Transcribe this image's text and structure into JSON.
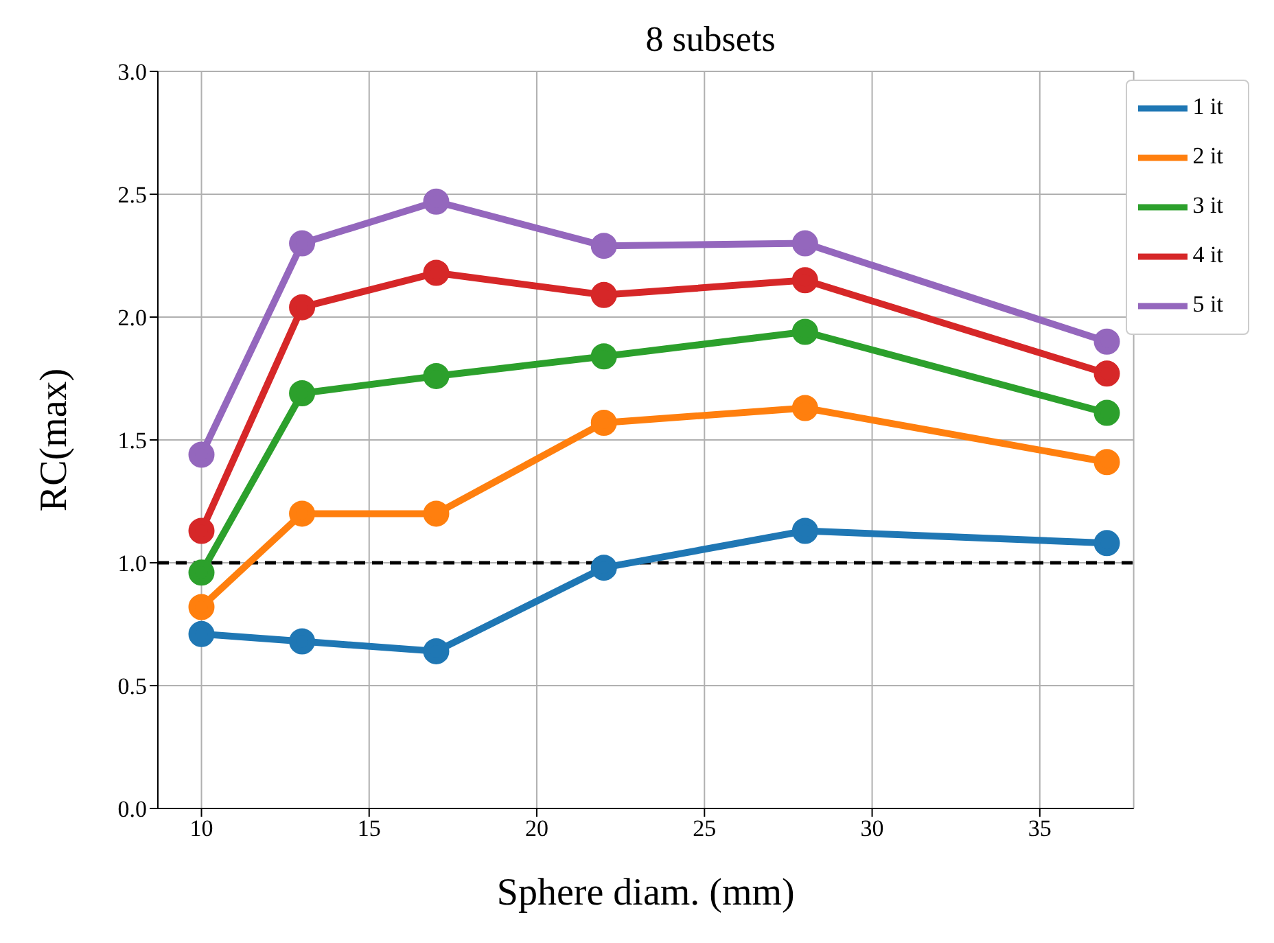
{
  "chart_data": {
    "type": "line",
    "title": "8 subsets",
    "xlabel": "Sphere diam. (mm)",
    "ylabel": "RC(max)",
    "x": [
      10,
      13,
      17,
      22,
      28,
      37
    ],
    "series": [
      {
        "name": "1 it",
        "color": "#1f77b4",
        "values": [
          0.71,
          0.68,
          0.64,
          0.98,
          1.13,
          1.08
        ]
      },
      {
        "name": "2 it",
        "color": "#ff7f0e",
        "values": [
          0.82,
          1.2,
          1.2,
          1.57,
          1.63,
          1.41
        ]
      },
      {
        "name": "3 it",
        "color": "#2ca02c",
        "values": [
          0.96,
          1.69,
          1.76,
          1.84,
          1.94,
          1.61
        ]
      },
      {
        "name": "4 it",
        "color": "#d62728",
        "values": [
          1.13,
          2.04,
          2.18,
          2.09,
          2.15,
          1.77
        ]
      },
      {
        "name": "5 it",
        "color": "#9467bd",
        "values": [
          1.44,
          2.3,
          2.47,
          2.29,
          2.3,
          1.9
        ]
      }
    ],
    "xlim": [
      8.7,
      37.8
    ],
    "xticks": [
      10,
      15,
      20,
      25,
      30,
      35
    ],
    "ylim": [
      0,
      3
    ],
    "yticks": [
      {
        "value": 0,
        "label": "0.0"
      },
      0.5,
      {
        "value": 1,
        "label": "1.0"
      },
      1.5,
      {
        "value": 2,
        "label": "2.0"
      },
      2.5,
      {
        "value": 3,
        "label": "3.0"
      }
    ],
    "ref_lines": [
      {
        "axis": "y",
        "value": 1,
        "color": "#000000",
        "line_style": "dashed"
      }
    ],
    "grid": true,
    "legend": "top right",
    "marker": "circle",
    "line_style": "solid"
  }
}
